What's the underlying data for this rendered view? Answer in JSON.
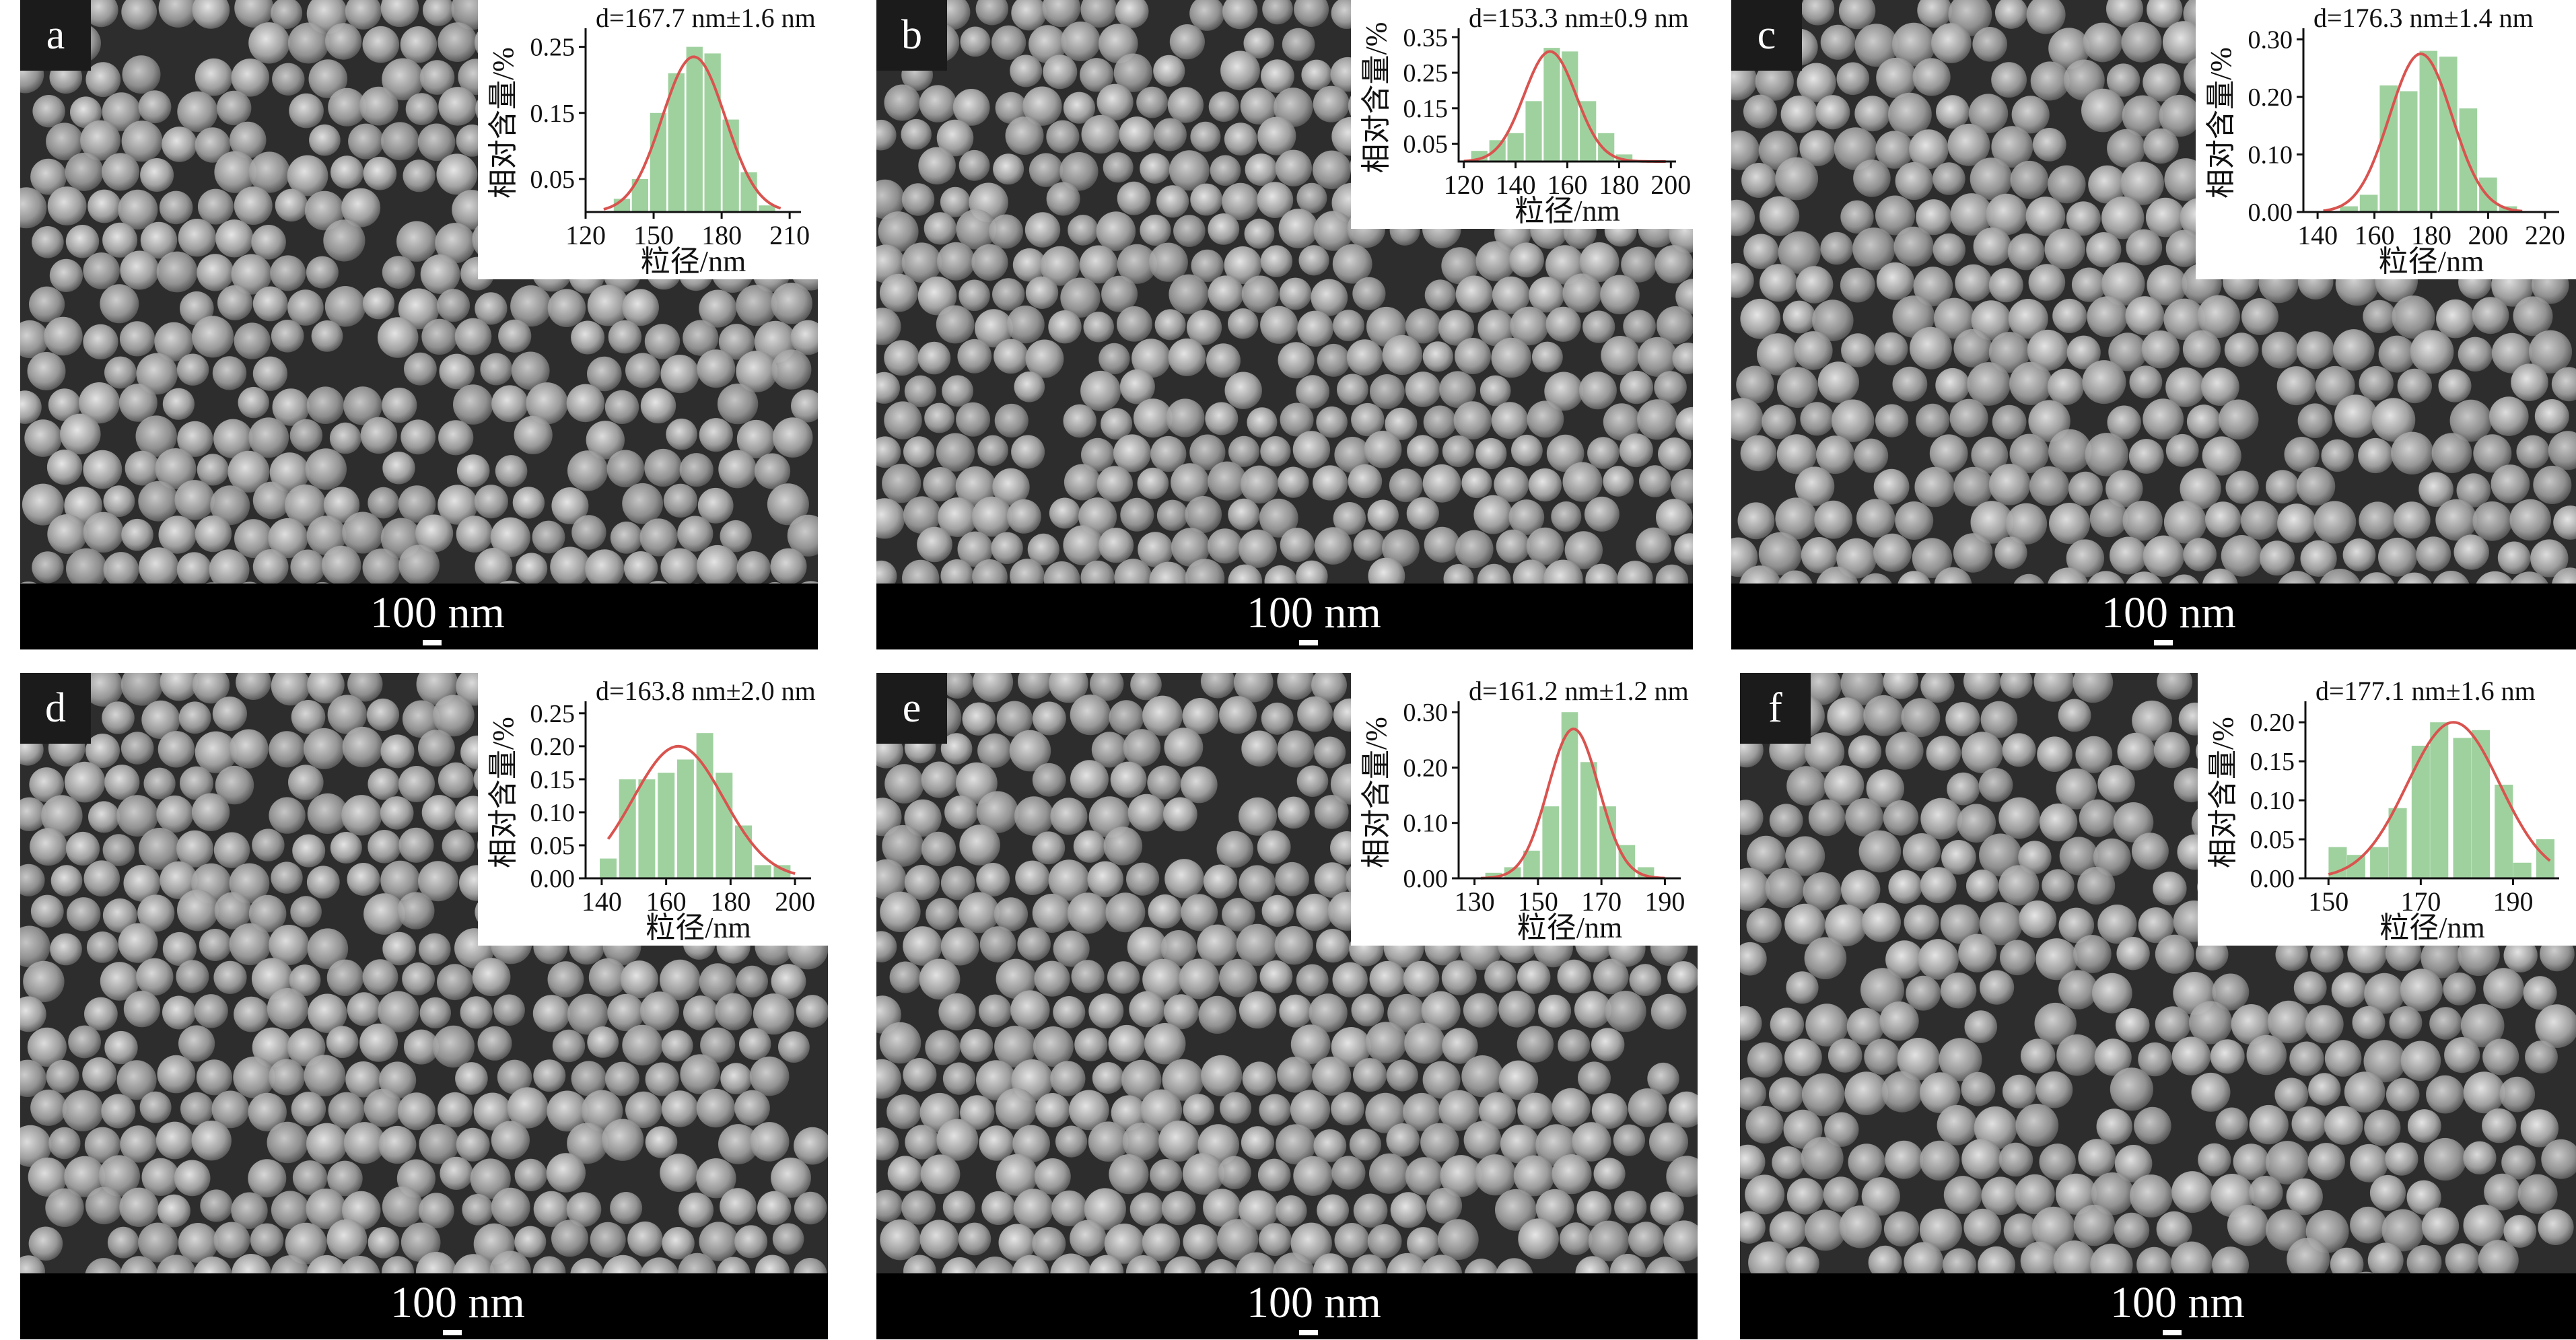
{
  "scale_label": "100 nm",
  "panel_letters": [
    "a",
    "b",
    "c",
    "d",
    "e",
    "f"
  ],
  "chart_data": [
    {
      "type": "bar",
      "panel": "a",
      "annotation": "d=167.7 nm±1.6 nm",
      "xlabel": "粒径/nm",
      "ylabel": "相对含量/%",
      "xlim": [
        120,
        215
      ],
      "ylim": [
        0,
        0.27
      ],
      "xticks": [
        120,
        150,
        180,
        210
      ],
      "yticks": [
        0.05,
        0.15,
        0.25
      ],
      "bin_width": 8,
      "bins": [
        {
          "x": 136,
          "y": 0.02
        },
        {
          "x": 144,
          "y": 0.05
        },
        {
          "x": 152,
          "y": 0.15
        },
        {
          "x": 160,
          "y": 0.21
        },
        {
          "x": 168,
          "y": 0.25
        },
        {
          "x": 176,
          "y": 0.24
        },
        {
          "x": 184,
          "y": 0.14
        },
        {
          "x": 192,
          "y": 0.06
        },
        {
          "x": 200,
          "y": 0.01
        }
      ],
      "fit": {
        "mean": 167.7,
        "sigma": 14,
        "peak": 0.235,
        "xmin": 128,
        "xmax": 206
      }
    },
    {
      "type": "bar",
      "panel": "b",
      "annotation": "d=153.3 nm±0.9 nm",
      "xlabel": "粒径/nm",
      "ylabel": "相对含量/%",
      "xlim": [
        118,
        202
      ],
      "ylim": [
        0,
        0.36
      ],
      "xticks": [
        120,
        140,
        160,
        180,
        200
      ],
      "yticks": [
        0.05,
        0.15,
        0.25,
        0.35
      ],
      "bin_width": 7,
      "bins": [
        {
          "x": 126,
          "y": 0.03
        },
        {
          "x": 133,
          "y": 0.06
        },
        {
          "x": 140,
          "y": 0.08
        },
        {
          "x": 147,
          "y": 0.17
        },
        {
          "x": 154,
          "y": 0.32
        },
        {
          "x": 161,
          "y": 0.31
        },
        {
          "x": 168,
          "y": 0.17
        },
        {
          "x": 175,
          "y": 0.08
        },
        {
          "x": 182,
          "y": 0.02
        }
      ],
      "fit": {
        "mean": 153.3,
        "sigma": 10,
        "peak": 0.31,
        "xmin": 120,
        "xmax": 198
      }
    },
    {
      "type": "bar",
      "panel": "c",
      "annotation": "d=176.3 nm±1.4 nm",
      "xlabel": "粒径/nm",
      "ylabel": "相对含量/%",
      "xlim": [
        135,
        225
      ],
      "ylim": [
        0,
        0.31
      ],
      "xticks": [
        140,
        160,
        180,
        200,
        220
      ],
      "yticks": [
        0.0,
        0.1,
        0.2,
        0.3
      ],
      "bin_width": 7,
      "bins": [
        {
          "x": 151,
          "y": 0.01
        },
        {
          "x": 158,
          "y": 0.03
        },
        {
          "x": 165,
          "y": 0.22
        },
        {
          "x": 172,
          "y": 0.21
        },
        {
          "x": 179,
          "y": 0.28
        },
        {
          "x": 186,
          "y": 0.27
        },
        {
          "x": 193,
          "y": 0.18
        },
        {
          "x": 200,
          "y": 0.06
        },
        {
          "x": 207,
          "y": 0.01
        }
      ],
      "fit": {
        "mean": 176.3,
        "sigma": 11,
        "peak": 0.275,
        "xmin": 142,
        "xmax": 212
      }
    },
    {
      "type": "bar",
      "panel": "d",
      "annotation": "d=163.8 nm±2.0 nm",
      "xlabel": "粒径/nm",
      "ylabel": "相对含量/%",
      "xlim": [
        135,
        205
      ],
      "ylim": [
        0,
        0.26
      ],
      "xticks": [
        140,
        160,
        180,
        200
      ],
      "yticks": [
        0.0,
        0.05,
        0.1,
        0.15,
        0.2,
        0.25
      ],
      "bin_width": 5.8,
      "bins": [
        {
          "x": 142,
          "y": 0.03
        },
        {
          "x": 148,
          "y": 0.15
        },
        {
          "x": 154,
          "y": 0.15
        },
        {
          "x": 160,
          "y": 0.16
        },
        {
          "x": 166,
          "y": 0.18
        },
        {
          "x": 172,
          "y": 0.22
        },
        {
          "x": 178,
          "y": 0.16
        },
        {
          "x": 184,
          "y": 0.08
        },
        {
          "x": 190,
          "y": 0.02
        },
        {
          "x": 196,
          "y": 0.02
        }
      ],
      "fit": {
        "mean": 163.8,
        "sigma": 14,
        "peak": 0.2,
        "xmin": 142,
        "xmax": 200
      }
    },
    {
      "type": "bar",
      "panel": "e",
      "annotation": "d=161.2 nm±1.2 nm",
      "xlabel": "粒径/nm",
      "ylabel": "相对含量/%",
      "xlim": [
        125,
        195
      ],
      "ylim": [
        0,
        0.31
      ],
      "xticks": [
        130,
        150,
        170,
        190
      ],
      "yticks": [
        0.0,
        0.1,
        0.2,
        0.3
      ],
      "bin_width": 5.8,
      "bins": [
        {
          "x": 136,
          "y": 0.01
        },
        {
          "x": 142,
          "y": 0.02
        },
        {
          "x": 148,
          "y": 0.05
        },
        {
          "x": 154,
          "y": 0.13
        },
        {
          "x": 160,
          "y": 0.3
        },
        {
          "x": 166,
          "y": 0.21
        },
        {
          "x": 172,
          "y": 0.13
        },
        {
          "x": 178,
          "y": 0.06
        },
        {
          "x": 184,
          "y": 0.02
        }
      ],
      "fit": {
        "mean": 161.2,
        "sigma": 8,
        "peak": 0.27,
        "xmin": 132,
        "xmax": 190
      }
    },
    {
      "type": "bar",
      "panel": "f",
      "annotation": "d=177.1 nm±1.6 nm",
      "xlabel": "粒径/nm",
      "ylabel": "相对含量/%",
      "xlim": [
        145,
        200
      ],
      "ylim": [
        0,
        0.22
      ],
      "xticks": [
        150,
        170,
        190
      ],
      "yticks": [
        0.0,
        0.05,
        0.1,
        0.15,
        0.2
      ],
      "bin_width": 4.4,
      "bins": [
        {
          "x": 152,
          "y": 0.04
        },
        {
          "x": 156,
          "y": 0.03
        },
        {
          "x": 161,
          "y": 0.04
        },
        {
          "x": 165,
          "y": 0.09
        },
        {
          "x": 170,
          "y": 0.17
        },
        {
          "x": 174,
          "y": 0.2
        },
        {
          "x": 179,
          "y": 0.18
        },
        {
          "x": 183,
          "y": 0.19
        },
        {
          "x": 188,
          "y": 0.12
        },
        {
          "x": 192,
          "y": 0.02
        },
        {
          "x": 197,
          "y": 0.05
        }
      ],
      "fit": {
        "mean": 177.1,
        "sigma": 10,
        "peak": 0.2,
        "xmin": 150,
        "xmax": 198
      }
    }
  ]
}
